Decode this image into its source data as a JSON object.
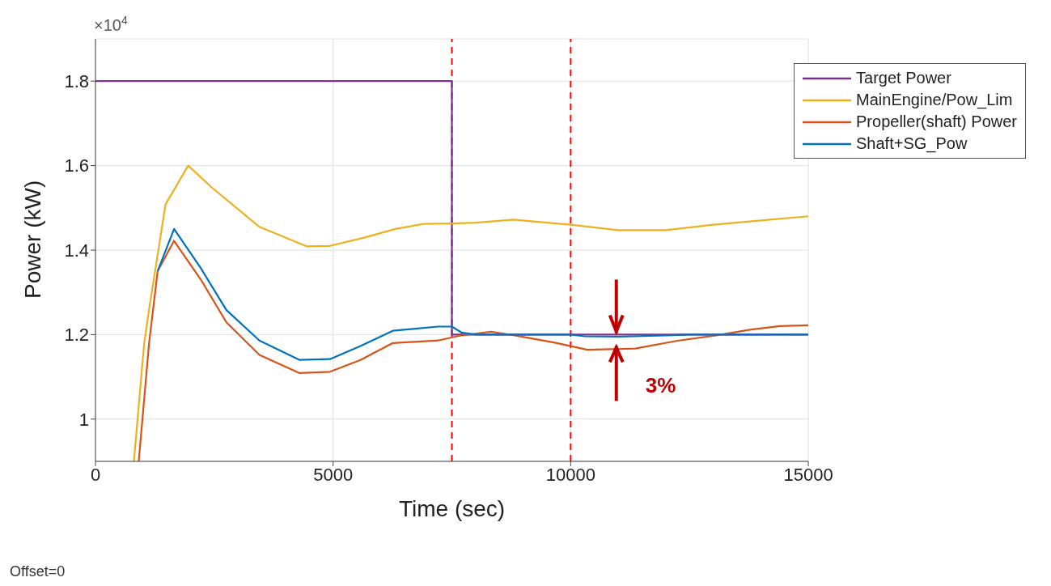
{
  "chart_data": {
    "type": "line",
    "xlabel": "Time (sec)",
    "ylabel": "Power (kW)",
    "xlim": [
      0,
      15000
    ],
    "xticks": [
      0,
      5000,
      10000,
      15000
    ],
    "ylim": [
      0.9,
      1.9
    ],
    "yticks": [
      1,
      1.2,
      1.4,
      1.6,
      1.8
    ],
    "grid": true,
    "legend": "top right",
    "marker": "none",
    "line_style": "solid",
    "series": [
      {
        "name": "Target Power",
        "color": "#7e2f8e",
        "x": [
          0,
          7500,
          7500,
          15000
        ],
        "values": [
          1.8,
          1.8,
          1.2,
          1.2
        ]
      },
      {
        "name": "MainEngine/Pow_Lim",
        "color": "#edb120",
        "x": [
          808,
          1026,
          1128,
          1474,
          1950,
          2460,
          3450,
          4440,
          4935,
          5670,
          6310,
          6900,
          7500,
          8000,
          8800,
          9500,
          10000,
          11000,
          12000,
          13000,
          14000,
          15000
        ],
        "values": [
          0.9,
          1.18,
          1.26,
          1.508,
          1.6,
          1.547,
          1.455,
          1.409,
          1.41,
          1.43,
          1.45,
          1.462,
          1.463,
          1.465,
          1.472,
          1.465,
          1.46,
          1.447,
          1.447,
          1.46,
          1.47,
          1.48
        ]
      },
      {
        "name": "Propeller(shaft) Power",
        "color": "#d95319",
        "x": [
          910,
          1128,
          1308,
          1654,
          2218,
          2756,
          3450,
          4295,
          4935,
          5577,
          6256,
          7205,
          7640,
          8320,
          8820,
          9670,
          10350,
          11360,
          12220,
          13060,
          13800,
          14410,
          15000
        ],
        "values": [
          0.9,
          1.18,
          1.35,
          1.422,
          1.33,
          1.229,
          1.152,
          1.109,
          1.112,
          1.14,
          1.18,
          1.186,
          1.197,
          1.207,
          1.198,
          1.181,
          1.164,
          1.167,
          1.185,
          1.198,
          1.212,
          1.22,
          1.222
        ]
      },
      {
        "name": "Shaft+SG_Pow",
        "color": "#0072bd",
        "x": [
          1308,
          1654,
          2218,
          2756,
          3450,
          4295,
          4935,
          5577,
          6256,
          7205,
          7500,
          7700,
          8000,
          9000,
          10000,
          10300,
          11000,
          12000,
          12500,
          15000
        ],
        "values": [
          1.35,
          1.45,
          1.357,
          1.258,
          1.186,
          1.14,
          1.142,
          1.173,
          1.209,
          1.219,
          1.219,
          1.205,
          1.2,
          1.2,
          1.2,
          1.196,
          1.195,
          1.198,
          1.2,
          1.2
        ]
      }
    ],
    "ref_lines": [
      {
        "axis": "x",
        "value": 7500,
        "color": "#ff0000",
        "line_style": "dashed"
      },
      {
        "axis": "x",
        "value": 10000,
        "color": "#ff0000",
        "line_style": "dashed"
      }
    ],
    "annotations": [
      "×10$^{4}$",
      "Offset=0",
      {
        "text": "3%",
        "x": 10960,
        "y": 1.2
      }
    ]
  }
}
